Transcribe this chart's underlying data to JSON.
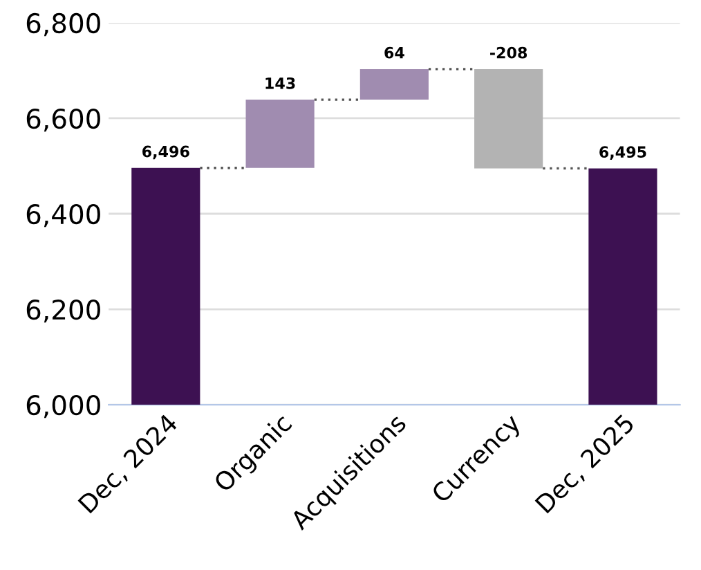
{
  "chart_data": {
    "type": "bar",
    "categories": [
      "Dec, 2024",
      "Organic",
      "Acquisitions",
      "Currency",
      "Dec, 2025"
    ],
    "values": [
      6496,
      143,
      64,
      -208,
      6495
    ],
    "base": [
      null,
      6496,
      6639,
      6703,
      null
    ],
    "colors": [
      "#3d1152",
      "#a08cb0",
      "#a08cb0",
      "#b3b3b3",
      "#3d1152"
    ],
    "value_labels": [
      "6,496",
      "143",
      "64",
      "-208",
      "6,495"
    ],
    "ylim": [
      6000,
      6800
    ],
    "yticks": [
      {
        "value": 6000,
        "label": "6,000"
      },
      {
        "value": 6200,
        "label": "6,200"
      },
      {
        "value": 6400,
        "label": "6,400"
      },
      {
        "value": 6600,
        "label": "6,600"
      },
      {
        "value": 6800,
        "label": "6,800"
      }
    ],
    "grid": "y"
  }
}
